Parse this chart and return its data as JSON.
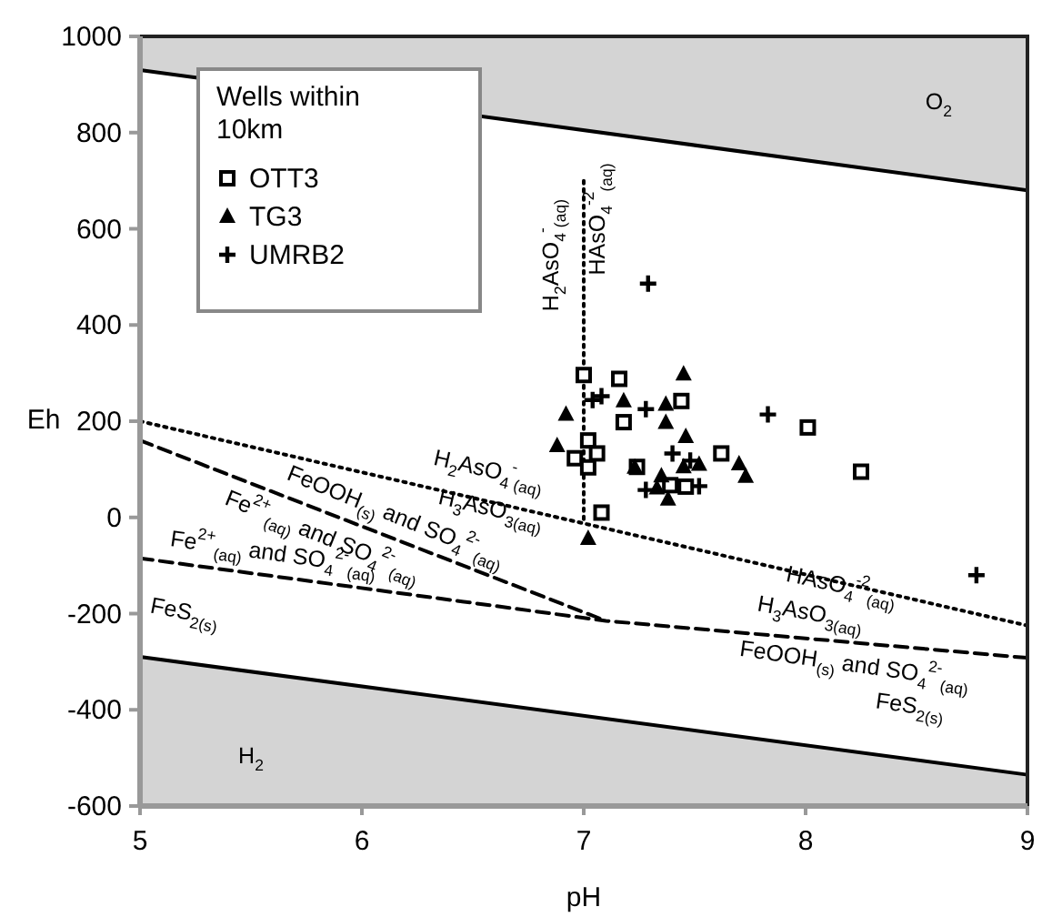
{
  "chart_data": {
    "type": "scatter",
    "xlabel": "pH",
    "ylabel": "Eh",
    "xlim": [
      5,
      9
    ],
    "ylim": [
      -600,
      1000
    ],
    "xticks": [
      5,
      6,
      7,
      8,
      9
    ],
    "yticks": [
      -600,
      -400,
      -200,
      0,
      200,
      400,
      600,
      800,
      1000
    ],
    "legend": "top left",
    "legend_title": "Wells within 10km",
    "series": [
      {
        "name": "OTT3",
        "marker": "square",
        "color": "#000000",
        "x": [
          7.0,
          7.16,
          7.44,
          7.18,
          7.02,
          6.96,
          7.06,
          7.02,
          7.24,
          7.39,
          7.46,
          7.62,
          8.01,
          8.25,
          7.08
        ],
        "values": [
          296,
          288,
          242,
          198,
          160,
          123,
          133,
          104,
          105,
          67,
          64,
          133,
          187,
          95,
          10
        ]
      },
      {
        "name": "TG3",
        "marker": "triangle",
        "color": "#000000",
        "x": [
          7.45,
          7.18,
          7.37,
          6.92,
          7.37,
          7.46,
          6.88,
          7.23,
          7.35,
          7.45,
          7.52,
          7.7,
          7.73,
          7.33,
          7.38,
          7.02
        ],
        "values": [
          298,
          242,
          235,
          214,
          197,
          168,
          149,
          104,
          86,
          105,
          110,
          111,
          85,
          61,
          38,
          -44
        ]
      },
      {
        "name": "UMRB2",
        "marker": "cross",
        "color": "#000000",
        "x": [
          7.29,
          7.08,
          7.04,
          7.28,
          7.83,
          7.4,
          7.48,
          7.28,
          7.52,
          8.77
        ],
        "values": [
          486,
          252,
          244,
          225,
          214,
          133,
          118,
          57,
          65,
          -120
        ]
      },
      {
        "type": "line",
        "line_style": "dotted",
        "color": "#000000",
        "x": [
          7.0,
          7.0
        ],
        "values": [
          700,
          -12
        ]
      },
      {
        "type": "line",
        "line_style": "dotted",
        "color": "#000000",
        "x": [
          5,
          9
        ],
        "values": [
          200,
          -225
        ]
      },
      {
        "type": "line",
        "line_style": "dashed",
        "color": "#000000",
        "x": [
          5,
          7.1
        ],
        "values": [
          160,
          -215
        ]
      },
      {
        "type": "line",
        "line_style": "dashed",
        "color": "#000000",
        "x": [
          5,
          7.1,
          9
        ],
        "values": [
          -85,
          -215,
          -292
        ]
      },
      {
        "type": "line",
        "line_style": "solid",
        "color": "#000000",
        "x": [
          5,
          9
        ],
        "values": [
          930,
          680
        ],
        "lower": [
          930,
          680
        ],
        "upper": [
          1000,
          1000
        ]
      },
      {
        "type": "line",
        "line_style": "solid",
        "color": "#000000",
        "x": [
          5,
          9
        ],
        "values": [
          -290,
          -535
        ],
        "lower": [
          -600,
          -600
        ],
        "upper": [
          -290,
          -535
        ]
      }
    ],
    "annotations": [
      "O$_{2}$",
      "H$_{2}$",
      "H$_{2}$AsO$_{4}$$^{-}$$_{(aq)}$",
      "HAsO$_{4}$$^{-2}$$_{(aq)}$",
      "H$_{2}$AsO$_{4}$$^{-}$$_{(aq)}$",
      "H$_{3}$AsO$_{3(aq)}$",
      "HAsO$_{4}$$^{-2}$$_{(aq)}$",
      "H$_{3}$AsO$_{3(aq)}$",
      "FeOOH$_{(s)}$ and SO$_{4}$$^{2-}$$_{(aq)}$",
      "Fe$^{2+}$$_{(aq)}$ and SO$_{4}$$^{2-}$$_{(aq)}$",
      "Fe$^{2+}$$_{(aq)}$ and SO$_{4}$$^{2-}$$_{(aq)}$",
      "FeS$_{2(s)}$",
      "FeOOH$_{(s)}$ and SO$_{4}$$^{2-}$$_{(aq)}$",
      "FeS$_{2(s)}$"
    ]
  }
}
